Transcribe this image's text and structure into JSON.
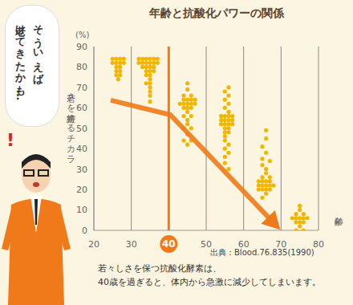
{
  "chart_data": {
    "type": "scatter",
    "title": "年齢と抗酸化パワーの関係",
    "y_label": "若さを維持するチカラ",
    "y_unit": "(%)",
    "x_label": "年齢",
    "x": [
      25,
      26,
      27,
      28,
      25,
      26,
      27,
      28,
      26,
      27,
      26,
      27,
      26,
      27,
      26.5,
      32,
      33,
      34,
      35,
      36,
      37,
      32,
      33,
      34,
      35,
      36,
      37,
      33,
      34,
      35,
      36,
      34,
      35,
      36,
      34,
      35,
      35,
      34,
      35,
      35,
      35,
      35,
      35,
      45,
      45,
      44,
      46,
      44,
      45,
      46,
      47,
      43,
      44,
      45,
      46,
      47,
      44,
      45,
      46,
      45,
      44,
      46,
      45,
      45,
      44,
      46,
      45,
      44,
      46,
      45,
      56,
      55,
      56,
      55,
      56,
      55,
      56,
      54,
      55,
      56,
      57,
      54,
      55,
      56,
      57,
      54,
      55,
      56,
      57,
      55,
      56,
      55,
      56,
      55,
      55,
      56,
      55,
      56,
      55,
      55,
      56,
      66,
      66,
      65,
      66,
      65,
      67,
      65,
      66,
      66,
      65,
      67,
      64,
      65,
      66,
      67,
      64,
      65,
      66,
      67,
      68,
      64,
      65,
      66,
      67,
      66,
      65,
      75,
      75,
      74,
      76,
      73,
      74,
      75,
      76,
      77,
      74,
      75,
      76,
      75,
      74,
      76
    ],
    "values": [
      84,
      84,
      84,
      84,
      82,
      82,
      82,
      82,
      80,
      80,
      78,
      78,
      76,
      76,
      74,
      84,
      84,
      84,
      84,
      84,
      84,
      82,
      82,
      82,
      82,
      82,
      82,
      80,
      80,
      80,
      80,
      78,
      78,
      78,
      76,
      76,
      74,
      72,
      72,
      70,
      68,
      66,
      63,
      72,
      69,
      66,
      66,
      64,
      64,
      64,
      64,
      62,
      62,
      62,
      62,
      62,
      60,
      60,
      60,
      58,
      56,
      56,
      54,
      52,
      50,
      50,
      47,
      44,
      44,
      42,
      70,
      68,
      66,
      64,
      62,
      60,
      58,
      56,
      56,
      56,
      56,
      54,
      54,
      54,
      54,
      52,
      52,
      52,
      52,
      50,
      50,
      48,
      48,
      46,
      44,
      42,
      40,
      38,
      36,
      33,
      30,
      49,
      45,
      41,
      38,
      35,
      34,
      32,
      30,
      28,
      26,
      26,
      24,
      24,
      24,
      24,
      22,
      22,
      22,
      22,
      22,
      20,
      20,
      20,
      20,
      18,
      16,
      12,
      10,
      8,
      8,
      6,
      6,
      6,
      6,
      6,
      4,
      4,
      4,
      2,
      0,
      0
    ],
    "color": "#f2b600",
    "marker": "circle",
    "xlim": [
      20,
      80
    ],
    "xticks": [
      20,
      30,
      40,
      50,
      60,
      70,
      80
    ],
    "ylim": [
      0,
      90
    ],
    "yticks": [
      0,
      10,
      20,
      30,
      40,
      50,
      60,
      70,
      80,
      90
    ],
    "grid": true,
    "highlight_x": 40,
    "trend_arrow": {
      "x": [
        24.5,
        40.4,
        68.9
      ],
      "y": [
        63.7,
        56.6,
        2
      ]
    },
    "source": "出典：Blood.76.835(1990)",
    "caption": [
      "若々しさを保つ抗酸化酵素は、",
      "40歳を過ぎると、体内から急激に減少してしまいます。"
    ],
    "speech": [
      "そういえば",
      "老けてきたかも…"
    ],
    "exclamation": "!"
  }
}
